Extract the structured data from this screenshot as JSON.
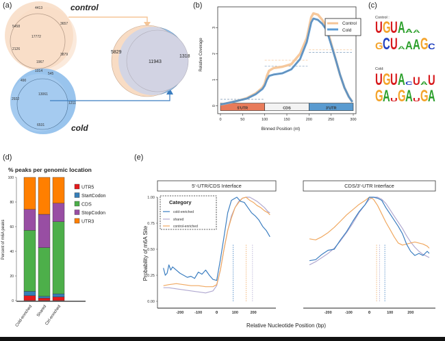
{
  "panels": {
    "a": {
      "label": "(a)"
    },
    "b": {
      "label": "(b)"
    },
    "c": {
      "label": "(c)"
    },
    "d": {
      "label": "(d)"
    },
    "e": {
      "label": "(e)"
    }
  },
  "colors": {
    "control": "#f5c597",
    "control_dark": "#f0a860",
    "cold": "#5b9bd5",
    "cold_dark": "#3a7dc0",
    "shared": "#b0a8d0",
    "utr5": "#e87b5a",
    "cds_region": "#f3f3f3",
    "utr3": "#5a9bd0",
    "bar_utr5": "#e41a1c",
    "bar_startcodon": "#377eb8",
    "bar_cds": "#4daf4a",
    "bar_stopcodon": "#984ea3",
    "bar_utr3": "#ff7f00"
  },
  "chart_data": [
    {
      "panel": "a",
      "type": "venn",
      "control": {
        "title": "control",
        "regions": [
          "4413",
          "5458",
          "17772",
          "3657",
          "2126",
          "3879",
          "1967"
        ]
      },
      "cold": {
        "title": "cold",
        "regions": [
          "1014",
          "545",
          "490",
          "13061",
          "2922",
          "1211",
          "6531"
        ]
      },
      "merged": {
        "control_only": "5829",
        "overlap": "11943",
        "cold_only": "1318"
      }
    },
    {
      "panel": "b",
      "type": "line",
      "title": "",
      "xlabel": "Binned Position (nt)",
      "ylabel": "Relative Coverage",
      "xlim": [
        0,
        300
      ],
      "ylim": [
        -0.3,
        3.8
      ],
      "xticks": [
        "0",
        "50",
        "100",
        "150",
        "200",
        "250",
        "300"
      ],
      "yticks": [
        "0",
        "1",
        "2",
        "3"
      ],
      "legend": {
        "position": "top-right",
        "entries": [
          "Control",
          "Cold"
        ]
      },
      "regions": [
        {
          "label": "5'UTR",
          "from": 0,
          "to": 100
        },
        {
          "label": "CDS",
          "from": 100,
          "to": 200
        },
        {
          "label": "3'UTR",
          "from": 200,
          "to": 300
        }
      ],
      "series": [
        {
          "name": "Control",
          "x": [
            0,
            20,
            40,
            60,
            80,
            95,
            100,
            105,
            110,
            120,
            140,
            160,
            180,
            195,
            205,
            210,
            220,
            230,
            240,
            250,
            260,
            270,
            280,
            290,
            298
          ],
          "y": [
            0.05,
            0.12,
            0.2,
            0.3,
            0.48,
            0.7,
            0.85,
            1.15,
            1.35,
            1.45,
            1.5,
            1.6,
            2.0,
            2.6,
            3.4,
            3.55,
            3.5,
            3.3,
            3.0,
            2.4,
            1.8,
            1.2,
            0.7,
            0.35,
            0.15
          ],
          "mean_by_region": [
            0.25,
            1.75,
            2.15
          ]
        },
        {
          "name": "Cold",
          "x": [
            0,
            20,
            40,
            60,
            80,
            95,
            100,
            105,
            110,
            120,
            140,
            160,
            180,
            195,
            205,
            210,
            220,
            230,
            240,
            250,
            260,
            270,
            280,
            290,
            298
          ],
          "y": [
            0.05,
            0.12,
            0.2,
            0.28,
            0.45,
            0.65,
            0.78,
            1.0,
            1.15,
            1.2,
            1.25,
            1.4,
            1.8,
            2.45,
            3.2,
            3.35,
            3.3,
            3.15,
            2.9,
            2.35,
            1.8,
            1.2,
            0.7,
            0.35,
            0.15
          ],
          "mean_by_region": [
            0.25,
            1.52,
            2.05
          ]
        }
      ]
    },
    {
      "panel": "c",
      "type": "motif",
      "groups": [
        {
          "title": "Control :",
          "motifs": [
            "UGUAAA",
            "GCUAAAGC"
          ]
        },
        {
          "title": "Cold:",
          "motifs": [
            "UGUACUAU",
            "GAUGAUGA"
          ]
        }
      ]
    },
    {
      "panel": "d",
      "type": "bar",
      "stacked": true,
      "title": "% peaks per genomic location",
      "ylabel": "Percent of m6A peaks",
      "xlabel": "",
      "ylim": [
        0,
        100
      ],
      "yticks": [
        "0",
        "20",
        "40",
        "60",
        "80",
        "100"
      ],
      "categories": [
        "Cold-enriched",
        "Shared",
        "Ctrl-enriched"
      ],
      "legend": {
        "position": "right",
        "entries": [
          "UTR5",
          "StartCodon",
          "CDS",
          "StopCodon",
          "UTR3"
        ]
      },
      "series": [
        {
          "name": "UTR5",
          "values": [
            4,
            2,
            3
          ]
        },
        {
          "name": "StartCodon",
          "values": [
            3.5,
            1.5,
            2.5
          ]
        },
        {
          "name": "CDS",
          "values": [
            49.5,
            39.5,
            58.5
          ]
        },
        {
          "name": "StopCodon",
          "values": [
            17,
            27,
            15
          ]
        },
        {
          "name": "UTR3",
          "values": [
            26,
            30,
            21
          ]
        }
      ]
    },
    {
      "panel": "e",
      "type": "line",
      "ylabel": "Probability of m6A Site",
      "xlabel": "Relative Nucleotide Position (bp)",
      "ylim": [
        0,
        1.05
      ],
      "yticks": [
        "0.00",
        "0.25",
        "0.50",
        "0.75",
        "1.00"
      ],
      "legend": {
        "title": "Category",
        "position": "top-left",
        "entries": [
          "cold-enriched",
          "shared",
          "control-enriched"
        ]
      },
      "facets": [
        {
          "title": "5'-UTR/CDS Interface",
          "xlim": [
            -300,
            300
          ],
          "xticks": [
            "-200",
            "-100",
            "0",
            "100",
            "200"
          ],
          "vlines": {
            "cold-enriched": 90,
            "control-enriched": 160,
            "shared": 195
          },
          "series": [
            {
              "name": "cold-enriched",
              "x": [
                -290,
                -280,
                -270,
                -260,
                -250,
                -240,
                -220,
                -200,
                -180,
                -160,
                -140,
                -120,
                -100,
                -80,
                -60,
                -40,
                -20,
                0,
                20,
                40,
                60,
                80,
                100,
                110,
                130,
                150,
                170,
                190,
                210,
                230,
                250,
                270,
                290
              ],
              "y": [
                0.32,
                0.25,
                0.27,
                0.35,
                0.3,
                0.33,
                0.3,
                0.27,
                0.25,
                0.23,
                0.24,
                0.22,
                0.28,
                0.26,
                0.3,
                0.25,
                0.21,
                0.2,
                0.4,
                0.62,
                0.85,
                0.97,
                0.99,
                1.0,
                0.96,
                0.95,
                0.9,
                0.85,
                0.82,
                0.78,
                0.72,
                0.68,
                0.62
              ]
            },
            {
              "name": "shared",
              "x": [
                -290,
                -260,
                -220,
                -180,
                -140,
                -100,
                -60,
                -20,
                0,
                20,
                40,
                60,
                80,
                100,
                120,
                140,
                160,
                180,
                200,
                220,
                240,
                260,
                280,
                290
              ],
              "y": [
                0.13,
                0.13,
                0.12,
                0.11,
                0.1,
                0.09,
                0.08,
                0.1,
                0.15,
                0.3,
                0.5,
                0.68,
                0.82,
                0.9,
                0.96,
                0.99,
                1.0,
                1.0,
                0.98,
                0.96,
                0.93,
                0.9,
                0.86,
                0.85
              ]
            },
            {
              "name": "control-enriched",
              "x": [
                -290,
                -260,
                -220,
                -180,
                -140,
                -100,
                -60,
                -20,
                0,
                20,
                40,
                60,
                80,
                100,
                120,
                140,
                160,
                180,
                200,
                220,
                240,
                260,
                280,
                290
              ],
              "y": [
                0.15,
                0.16,
                0.17,
                0.16,
                0.15,
                0.15,
                0.14,
                0.14,
                0.16,
                0.3,
                0.5,
                0.68,
                0.8,
                0.9,
                0.95,
                0.99,
                1.0,
                0.97,
                0.95,
                0.92,
                0.9,
                0.87,
                0.85,
                0.83
              ]
            }
          ]
        },
        {
          "title": "CDS/3'-UTR Interface",
          "xlim": [
            -300,
            300
          ],
          "xticks": [
            "-200",
            "-100",
            "0",
            "100",
            "200"
          ],
          "vlines": {
            "control-enriched": 35,
            "shared": 50,
            "cold-enriched": 75
          },
          "series": [
            {
              "name": "cold-enriched",
              "x": [
                -290,
                -260,
                -230,
                -200,
                -170,
                -140,
                -110,
                -80,
                -50,
                -20,
                0,
                20,
                40,
                60,
                80,
                100,
                120,
                140,
                160,
                180,
                200,
                220,
                240,
                260,
                280,
                290
              ],
              "y": [
                0.39,
                0.4,
                0.45,
                0.49,
                0.5,
                0.59,
                0.67,
                0.77,
                0.86,
                0.93,
                1.0,
                1.0,
                0.99,
                0.97,
                0.9,
                0.84,
                0.78,
                0.72,
                0.65,
                0.55,
                0.48,
                0.44,
                0.46,
                0.44,
                0.48,
                0.46
              ]
            },
            {
              "name": "shared",
              "x": [
                -290,
                -260,
                -230,
                -200,
                -170,
                -140,
                -110,
                -80,
                -50,
                -20,
                0,
                20,
                40,
                60,
                80,
                100,
                120,
                140,
                160,
                180,
                200,
                220,
                240,
                260,
                280,
                290
              ],
              "y": [
                0.35,
                0.38,
                0.42,
                0.46,
                0.51,
                0.58,
                0.66,
                0.75,
                0.85,
                0.93,
                0.98,
                1.0,
                1.0,
                0.98,
                0.94,
                0.88,
                0.82,
                0.76,
                0.7,
                0.63,
                0.57,
                0.52,
                0.48,
                0.45,
                0.43,
                0.42
              ]
            },
            {
              "name": "control-enriched",
              "x": [
                -290,
                -260,
                -230,
                -200,
                -170,
                -140,
                -110,
                -80,
                -50,
                -20,
                0,
                20,
                40,
                60,
                80,
                100,
                120,
                140,
                160,
                180,
                200,
                220,
                240,
                260,
                280,
                290
              ],
              "y": [
                0.6,
                0.59,
                0.62,
                0.66,
                0.71,
                0.77,
                0.83,
                0.88,
                0.93,
                0.97,
                1.0,
                0.98,
                0.92,
                0.84,
                0.76,
                0.69,
                0.62,
                0.56,
                0.54,
                0.55,
                0.56,
                0.57,
                0.56,
                0.55,
                0.53,
                0.51
              ]
            }
          ]
        }
      ]
    }
  ]
}
